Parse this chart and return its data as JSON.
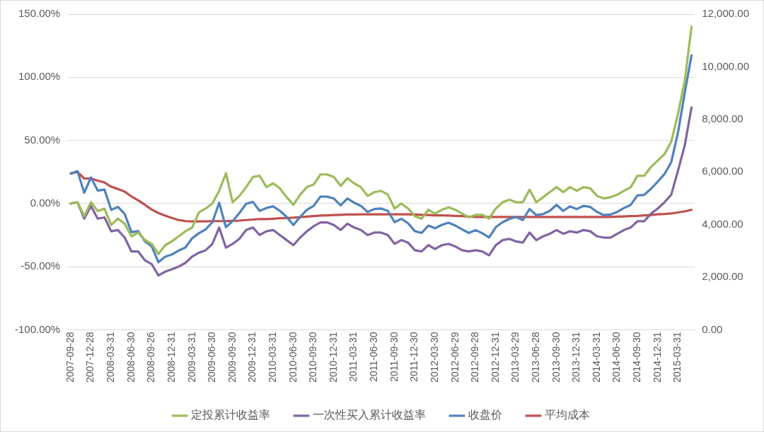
{
  "chart_data": {
    "type": "line",
    "categories": [
      "2007-09-28",
      null,
      null,
      "2007-12-28",
      null,
      null,
      "2008-03-31",
      null,
      null,
      "2008-06-30",
      null,
      null,
      "2008-09-26",
      null,
      null,
      "2008-12-31",
      null,
      null,
      "2009-03-31",
      null,
      null,
      "2009-06-30",
      null,
      null,
      "2009-09-30",
      null,
      null,
      "2009-12-31",
      null,
      null,
      "2010-03-31",
      null,
      null,
      "2010-06-30",
      null,
      null,
      "2010-09-30",
      null,
      null,
      "2010-12-31",
      null,
      null,
      "2011-03-31",
      null,
      null,
      "2011-06-30",
      null,
      null,
      "2011-09-30",
      null,
      null,
      "2011-12-30",
      null,
      null,
      "2012-03-30",
      null,
      null,
      "2012-06-29",
      null,
      null,
      "2012-09-28",
      null,
      null,
      "2012-12-31",
      null,
      null,
      "2013-03-29",
      null,
      null,
      "2013-06-28",
      null,
      null,
      "2013-09-30",
      null,
      null,
      "2013-12-31",
      null,
      null,
      "2014-03-31",
      null,
      null,
      "2014-06-30",
      null,
      null,
      "2014-09-30",
      null,
      null,
      "2014-12-31",
      null,
      null,
      "2015-03-31",
      null,
      null
    ],
    "series": [
      {
        "name": "定投累计收益率",
        "color": "#9bbb59",
        "axis": "y",
        "values": [
          0,
          1,
          -10,
          1,
          -6,
          -4,
          -17,
          -12,
          -16,
          -26,
          -23,
          -29,
          -32,
          -40,
          -33,
          -30,
          -26,
          -22,
          -19,
          -7,
          -4,
          0,
          10,
          24,
          1,
          6,
          13,
          21,
          22,
          13,
          16,
          12,
          5,
          -1,
          7,
          13,
          15,
          23,
          23,
          21,
          14,
          20,
          16,
          13,
          6,
          9,
          10,
          7,
          -4,
          0,
          -4,
          -10,
          -12,
          -5,
          -8,
          -5,
          -3,
          -5,
          -8,
          -11,
          -9,
          -9,
          -12,
          -4,
          1,
          3,
          1,
          1,
          11,
          1,
          5,
          9,
          13,
          9,
          13,
          10,
          13,
          12,
          6,
          4,
          5,
          7,
          10,
          13,
          22,
          22,
          29,
          34,
          39,
          49,
          71,
          97,
          140
        ]
      },
      {
        "name": "一次性买入累计收益率",
        "color": "#8064a2",
        "axis": "y",
        "values": [
          0,
          1,
          -12,
          -2,
          -12,
          -11,
          -22,
          -21,
          -27,
          -38,
          -38,
          -45,
          -48,
          -57,
          -54,
          -52,
          -50,
          -47,
          -42,
          -39,
          -37,
          -32,
          -19,
          -35,
          -32,
          -28,
          -21,
          -19,
          -25,
          -22,
          -21,
          -25,
          -29,
          -33,
          -27,
          -22,
          -18,
          -15,
          -15,
          -17,
          -21,
          -16,
          -19,
          -21,
          -25,
          -23,
          -23,
          -25,
          -32,
          -29,
          -31,
          -37,
          -38,
          -33,
          -36,
          -33,
          -32,
          -34,
          -37,
          -38,
          -37,
          -38,
          -41,
          -33,
          -29,
          -28,
          -30,
          -31,
          -23,
          -29,
          -26,
          -24,
          -21,
          -24,
          -22,
          -23,
          -21,
          -22,
          -26,
          -27,
          -27,
          -24,
          -21,
          -19,
          -14,
          -14,
          -8,
          -4,
          1,
          7,
          26,
          46,
          76
        ]
      },
      {
        "name": "收盘价",
        "color": "#4f81bd",
        "axis": "y2",
        "values": [
          5940,
          6030,
          5210,
          5790,
          5290,
          5330,
          4560,
          4670,
          4400,
          3710,
          3750,
          3360,
          3170,
          2570,
          2780,
          2860,
          3010,
          3130,
          3480,
          3670,
          3820,
          4090,
          4830,
          3900,
          4130,
          4440,
          4790,
          4860,
          4520,
          4630,
          4690,
          4520,
          4290,
          3980,
          4290,
          4560,
          4710,
          5060,
          5060,
          4990,
          4730,
          4990,
          4830,
          4710,
          4480,
          4590,
          4610,
          4520,
          4090,
          4220,
          4050,
          3750,
          3680,
          3960,
          3860,
          3990,
          4070,
          3960,
          3820,
          3680,
          3790,
          3670,
          3510,
          3900,
          4090,
          4210,
          4290,
          4170,
          4590,
          4360,
          4400,
          4520,
          4750,
          4520,
          4690,
          4590,
          4710,
          4670,
          4480,
          4360,
          4380,
          4480,
          4630,
          4750,
          5110,
          5130,
          5360,
          5630,
          5920,
          6370,
          7500,
          9000,
          10430
        ]
      },
      {
        "name": "平均成本",
        "color": "#c0504d",
        "axis": "y2",
        "values": [
          5940,
          6000,
          5750,
          5750,
          5670,
          5600,
          5440,
          5350,
          5250,
          5070,
          4920,
          4750,
          4570,
          4440,
          4340,
          4250,
          4170,
          4130,
          4120,
          4120,
          4120,
          4130,
          4130,
          4130,
          4140,
          4150,
          4170,
          4190,
          4210,
          4210,
          4220,
          4240,
          4250,
          4260,
          4280,
          4300,
          4320,
          4340,
          4350,
          4360,
          4370,
          4380,
          4380,
          4390,
          4390,
          4390,
          4390,
          4390,
          4390,
          4390,
          4390,
          4380,
          4370,
          4360,
          4350,
          4350,
          4340,
          4330,
          4320,
          4300,
          4290,
          4290,
          4290,
          4290,
          4290,
          4290,
          4290,
          4290,
          4290,
          4290,
          4290,
          4290,
          4290,
          4290,
          4290,
          4290,
          4290,
          4290,
          4290,
          4290,
          4290,
          4300,
          4310,
          4320,
          4330,
          4350,
          4360,
          4390,
          4400,
          4420,
          4460,
          4500,
          4560
        ]
      }
    ],
    "ylim": [
      -100,
      150
    ],
    "yticks": [
      {
        "value": -100,
        "label": "-100.00%"
      },
      {
        "value": -50,
        "label": "-50.00%"
      },
      {
        "value": 0,
        "label": "0.00%"
      },
      {
        "value": 50,
        "label": "50.00%"
      },
      {
        "value": 100,
        "label": "100.00%"
      },
      {
        "value": 150,
        "label": "150.00%"
      }
    ],
    "y2lim": [
      0,
      12000
    ],
    "y2ticks": [
      {
        "value": 0,
        "label": "0.00"
      },
      {
        "value": 2000,
        "label": "2,000.00"
      },
      {
        "value": 4000,
        "label": "4,000.00"
      },
      {
        "value": 6000,
        "label": "6,000.00"
      },
      {
        "value": 8000,
        "label": "8,000.00"
      },
      {
        "value": 10000,
        "label": "10,000.00"
      },
      {
        "value": 12000,
        "label": "12,000.00"
      }
    ],
    "grid": "y",
    "legend": "bottom",
    "marker": "none",
    "line_style": "solid"
  }
}
